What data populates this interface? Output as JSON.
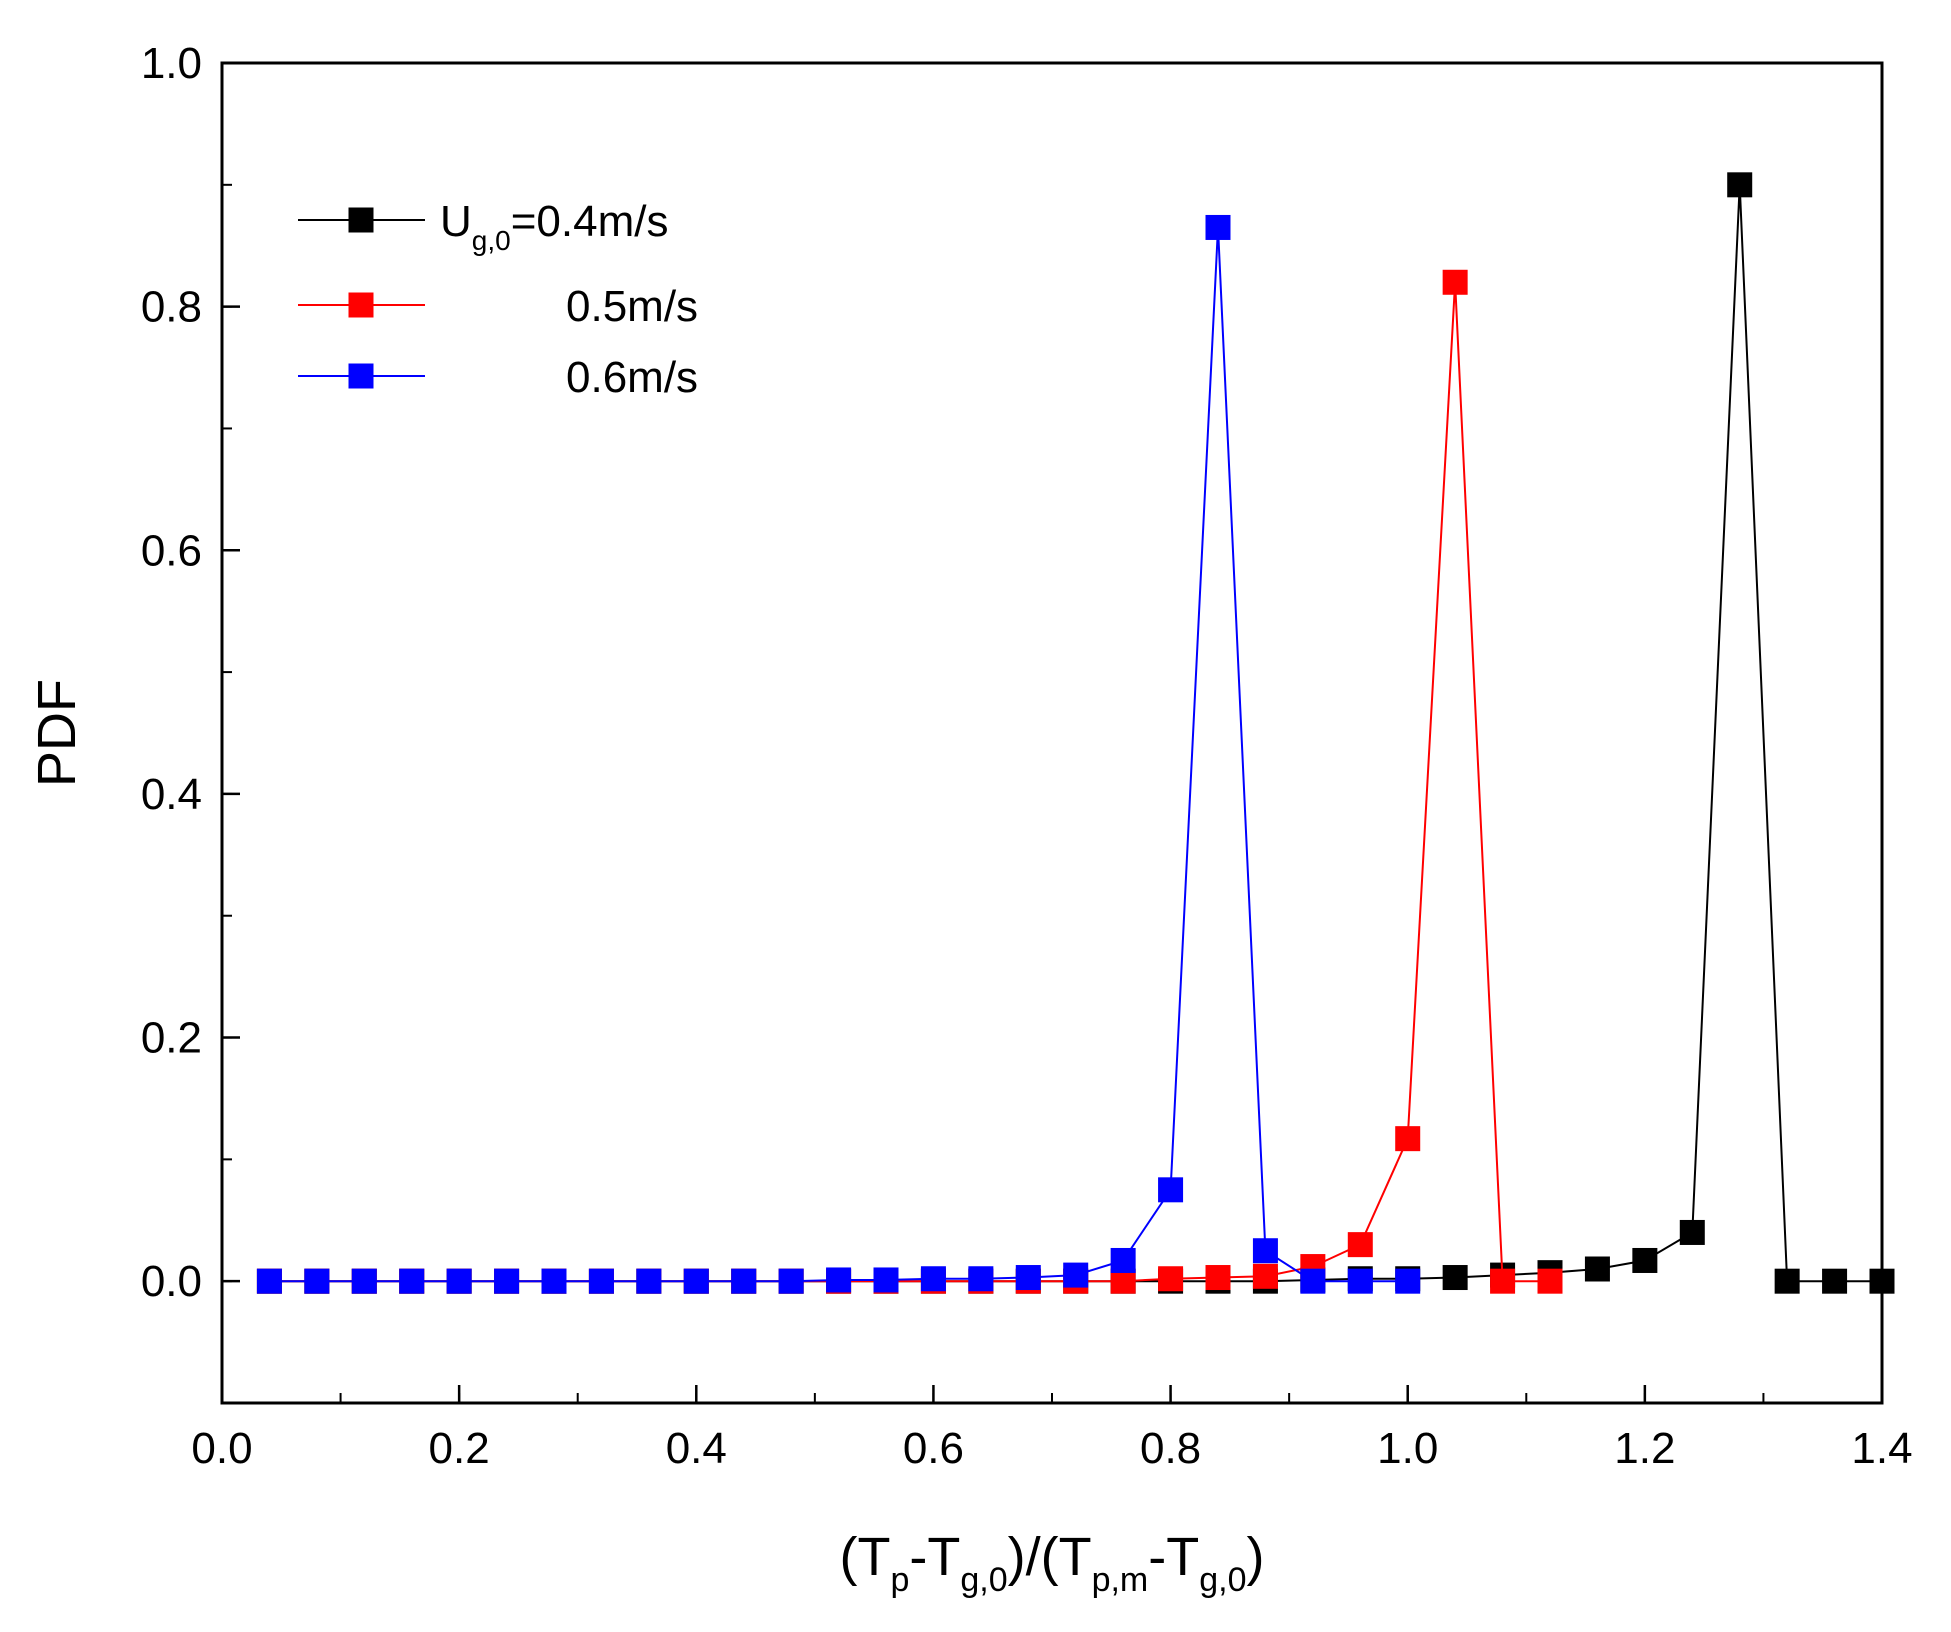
{
  "chart_data": {
    "type": "line",
    "title": "",
    "xlabel": "(Tp-Tg,0)/(Tp,m-Tg,0)",
    "xlabel_parts": {
      "open": "(T",
      "sub1": "p",
      "mid1": "-T",
      "sub2": "g,0",
      "mid2": ")/(T",
      "sub3": "p,m",
      "mid3": "-T",
      "sub4": "g,0",
      "close": ")"
    },
    "ylabel": "PDF",
    "xlim": [
      0.0,
      1.4
    ],
    "ylim": [
      -0.1,
      1.0
    ],
    "xticks": [
      0.0,
      0.2,
      0.4,
      0.6,
      0.8,
      1.0,
      1.2,
      1.4
    ],
    "xtick_labels": [
      "0.0",
      "0.2",
      "0.4",
      "0.6",
      "0.8",
      "1.0",
      "1.2",
      "1.4"
    ],
    "yticks": [
      0.0,
      0.2,
      0.4,
      0.6,
      0.8,
      1.0
    ],
    "ytick_labels": [
      "0.0",
      "0.2",
      "0.4",
      "0.6",
      "0.8",
      "1.0"
    ],
    "x_minor_step": 0.1,
    "y_minor_step": 0.1,
    "grid": false,
    "legend_position": "top-left",
    "series": [
      {
        "name": "Ug,0=0.4m/s",
        "legend_prefix": "U",
        "legend_sub": "g,0",
        "legend_suffix": "=0.4m/s",
        "color": "#000000",
        "x": [
          0.04,
          0.08,
          0.12,
          0.16,
          0.2,
          0.24,
          0.28,
          0.32,
          0.36,
          0.4,
          0.44,
          0.48,
          0.52,
          0.56,
          0.6,
          0.64,
          0.68,
          0.72,
          0.76,
          0.8,
          0.84,
          0.88,
          0.92,
          0.96,
          1.0,
          1.04,
          1.08,
          1.12,
          1.16,
          1.2,
          1.24,
          1.28,
          1.32,
          1.36,
          1.4
        ],
        "y": [
          0,
          0,
          0,
          0,
          0,
          0,
          0,
          0,
          0,
          0,
          0,
          0,
          0,
          0,
          0,
          0,
          0,
          0,
          0,
          0,
          0,
          0,
          0.001,
          0.002,
          0.002,
          0.003,
          0.005,
          0.007,
          0.01,
          0.017,
          0.04,
          0.9,
          0,
          0,
          0
        ]
      },
      {
        "name": "0.5m/s",
        "legend_prefix": "",
        "legend_sub": "",
        "legend_suffix": "0.5m/s",
        "color": "#ff0000",
        "x": [
          0.04,
          0.08,
          0.12,
          0.16,
          0.2,
          0.24,
          0.28,
          0.32,
          0.36,
          0.4,
          0.44,
          0.48,
          0.52,
          0.56,
          0.6,
          0.64,
          0.68,
          0.72,
          0.76,
          0.8,
          0.84,
          0.88,
          0.92,
          0.96,
          1.0,
          1.04,
          1.08,
          1.12
        ],
        "y": [
          0,
          0,
          0,
          0,
          0,
          0,
          0,
          0,
          0,
          0,
          0,
          0,
          0,
          0,
          0,
          0,
          0,
          0,
          0,
          0.002,
          0.003,
          0.004,
          0.012,
          0.03,
          0.117,
          0.82,
          0,
          0
        ]
      },
      {
        "name": "0.6m/s",
        "legend_prefix": "",
        "legend_sub": "",
        "legend_suffix": "0.6m/s",
        "color": "#0000ff",
        "x": [
          0.04,
          0.08,
          0.12,
          0.16,
          0.2,
          0.24,
          0.28,
          0.32,
          0.36,
          0.4,
          0.44,
          0.48,
          0.52,
          0.56,
          0.6,
          0.64,
          0.68,
          0.72,
          0.76,
          0.8,
          0.84,
          0.88,
          0.92,
          0.96,
          1.0
        ],
        "y": [
          0,
          0,
          0,
          0,
          0,
          0,
          0,
          0,
          0,
          0,
          0,
          0,
          0.001,
          0.001,
          0.002,
          0.002,
          0.003,
          0.005,
          0.017,
          0.075,
          0.865,
          0.025,
          0,
          0,
          0
        ]
      }
    ]
  }
}
